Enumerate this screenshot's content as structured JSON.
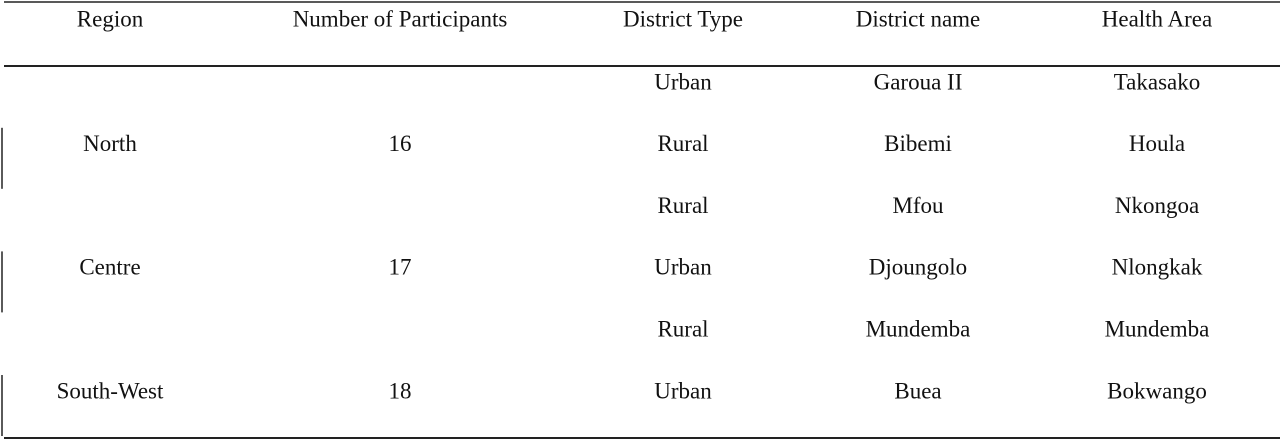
{
  "table": {
    "columns": [
      "Region",
      "Number of Participants",
      "District Type",
      "District name",
      "Health Area"
    ],
    "groups": [
      {
        "region": "North",
        "participants": "16",
        "rows": [
          [
            "Urban",
            "Garoua II",
            "Takasako"
          ],
          [
            "Rural",
            "Bibemi",
            "Houla"
          ]
        ]
      },
      {
        "region": "Centre",
        "participants": "17",
        "rows": [
          [
            "Rural",
            "Mfou",
            "Nkongoa"
          ],
          [
            "Urban",
            "Djoungolo",
            "Nlongkak"
          ]
        ]
      },
      {
        "region": "South-West",
        "participants": "18",
        "rows": [
          [
            "Rural",
            "Mundemba",
            "Mundemba"
          ],
          [
            "Urban",
            "Buea",
            "Bokwango"
          ]
        ]
      }
    ]
  }
}
